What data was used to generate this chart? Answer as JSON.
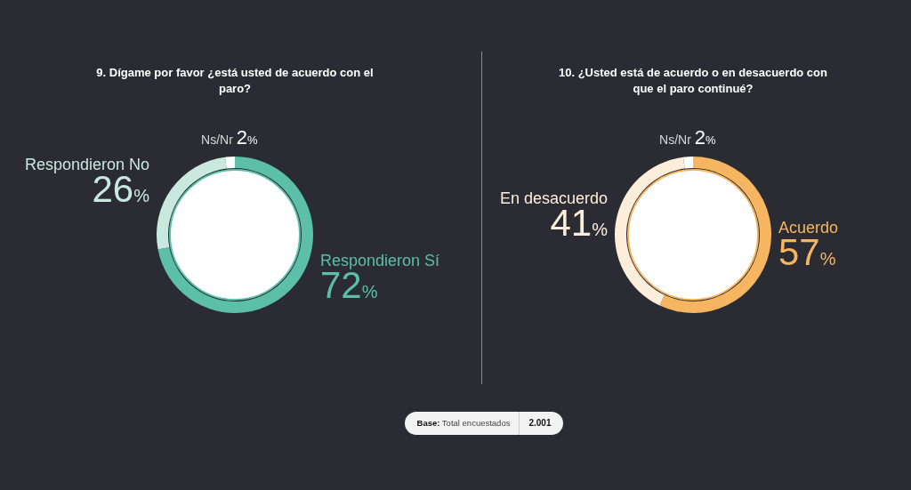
{
  "chart_data": [
    {
      "type": "donut",
      "title": "9. Dígame por favor ¿está usted de acuerdo con el paro?",
      "categories": [
        "Respondieron Sí",
        "Respondieron No",
        "Ns/Nr"
      ],
      "values": [
        72,
        26,
        2
      ],
      "colors": [
        "#5cbfa7",
        "#c9e9df",
        "#ffffff"
      ],
      "value_labels": [
        "72%",
        "26%",
        "2%"
      ],
      "annotations": [
        "Base: Total encuestados",
        "2.001"
      ]
    },
    {
      "type": "donut",
      "title": "10. ¿Usted está de acuerdo o en desacuerdo con que el paro continué?",
      "categories": [
        "Acuerdo",
        "En desacuerdo",
        "Ns/Nr"
      ],
      "values": [
        57,
        41,
        2
      ],
      "colors": [
        "#f6b560",
        "#fdeedb",
        "#ffffff"
      ],
      "value_labels": [
        "57%",
        "41%",
        "2%"
      ]
    }
  ]
}
